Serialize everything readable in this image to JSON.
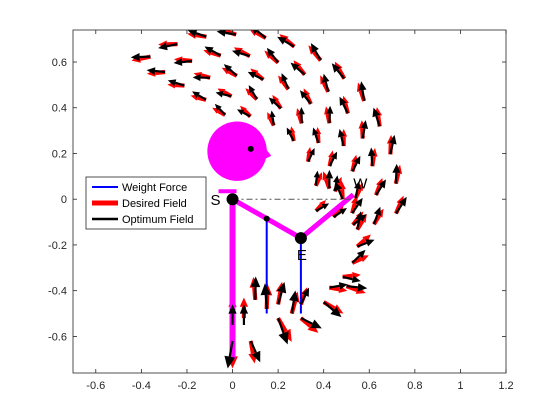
{
  "chart_data": {
    "type": "quiver",
    "title": "",
    "xlabel": "",
    "ylabel": "",
    "xlim": [
      -0.7,
      1.2
    ],
    "ylim": [
      -0.76,
      0.74
    ],
    "xticks": [
      "-0.6",
      "-0.4",
      "-0.2",
      "0",
      "0.2",
      "0.4",
      "0.6",
      "0.8",
      "1",
      "1.2"
    ],
    "yticks": [
      "0.6",
      "0.4",
      "0.2",
      "0",
      "-0.2",
      "-0.4",
      "-0.6"
    ],
    "grid": false,
    "legend": {
      "placement": "left",
      "entries": [
        {
          "name": "Weight Force",
          "color": "#0000ff"
        },
        {
          "name": "Desired Field",
          "color": "#ff0000"
        },
        {
          "name": "Optimum Field",
          "color": "#000000"
        }
      ]
    },
    "figure": {
      "head": {
        "center": [
          0.02,
          0.21
        ],
        "radius": 0.13,
        "color": "#ff00ff"
      },
      "shoulder": [
        0,
        0
      ],
      "elbow": [
        0.3,
        -0.17
      ],
      "upper_arm_mid": [
        0.15,
        -0.085
      ],
      "hip_bottom": [
        0,
        -0.7
      ],
      "color": "#ff00ff"
    },
    "points": [
      {
        "label": "S",
        "x": 0,
        "y": 0
      },
      {
        "label": "E",
        "x": 0.3,
        "y": -0.17
      },
      {
        "label": "W",
        "x": 0.53,
        "y": 0.02
      }
    ],
    "weight_force": {
      "color": "#0000ff",
      "segments": [
        [
          [
            0.15,
            -0.085
          ],
          [
            0.15,
            -0.5
          ]
        ],
        [
          [
            0.3,
            -0.17
          ],
          [
            0.3,
            -0.5
          ]
        ]
      ]
    },
    "vector_field": {
      "desired_color": "#ff0000",
      "optimum_color": "#000000",
      "rings": [
        {
          "r": 0.72,
          "from_deg": 120,
          "to_deg": -5,
          "n": 13,
          "len": 0.085,
          "tilt_deg": 18,
          "opt_dev_deg": 10
        },
        {
          "r": 0.63,
          "from_deg": 118,
          "to_deg": -10,
          "n": 12,
          "len": 0.08,
          "tilt_deg": 22,
          "opt_dev_deg": 12
        },
        {
          "r": 0.54,
          "from_deg": 113,
          "to_deg": -12,
          "n": 11,
          "len": 0.075,
          "tilt_deg": 26,
          "opt_dev_deg": 14
        },
        {
          "r": 0.45,
          "from_deg": 105,
          "to_deg": -10,
          "n": 9,
          "len": 0.07,
          "tilt_deg": 30,
          "opt_dev_deg": 16
        },
        {
          "r": 0.37,
          "from_deg": 95,
          "to_deg": -8,
          "n": 7,
          "len": 0.065,
          "tilt_deg": 34,
          "opt_dev_deg": 18
        }
      ],
      "elbow_ring": {
        "center": [
          0.3,
          -0.17
        ],
        "r": 0.25,
        "from_deg": 60,
        "to_deg": -60,
        "n": 8,
        "len": 0.08,
        "tilt_deg": -20,
        "opt_dev_deg": 20
      },
      "lower_arrows": [
        {
          "x": 0.1,
          "y": -0.44,
          "angle_deg": 95,
          "len": 0.1
        },
        {
          "x": 0.15,
          "y": -0.48,
          "angle_deg": 88,
          "len": 0.11
        },
        {
          "x": 0.2,
          "y": -0.46,
          "angle_deg": 80,
          "len": 0.1
        },
        {
          "x": 0.26,
          "y": -0.5,
          "angle_deg": 75,
          "len": 0.1
        },
        {
          "x": 0.3,
          "y": -0.46,
          "angle_deg": 70,
          "len": 0.08
        }
      ],
      "bottom_arrows": [
        {
          "x": 0,
          "y": -0.62,
          "angle_deg": 270,
          "len": 0.12
        },
        {
          "x": 0.08,
          "y": -0.62,
          "angle_deg": 280,
          "len": 0.1
        },
        {
          "x": 0.2,
          "y": -0.52,
          "angle_deg": 300,
          "len": 0.12
        },
        {
          "x": 0.3,
          "y": -0.52,
          "angle_deg": 320,
          "len": 0.1
        },
        {
          "x": 0.4,
          "y": -0.45,
          "angle_deg": 330,
          "len": 0.1
        },
        {
          "x": 0.5,
          "y": -0.38,
          "angle_deg": 340,
          "len": 0.09
        }
      ],
      "up_arrows": [
        {
          "x": 0,
          "y": -0.52,
          "angle_deg": 90,
          "len": 0.09
        },
        {
          "x": 0.05,
          "y": -0.52,
          "angle_deg": 90,
          "len": 0.09
        }
      ]
    }
  }
}
